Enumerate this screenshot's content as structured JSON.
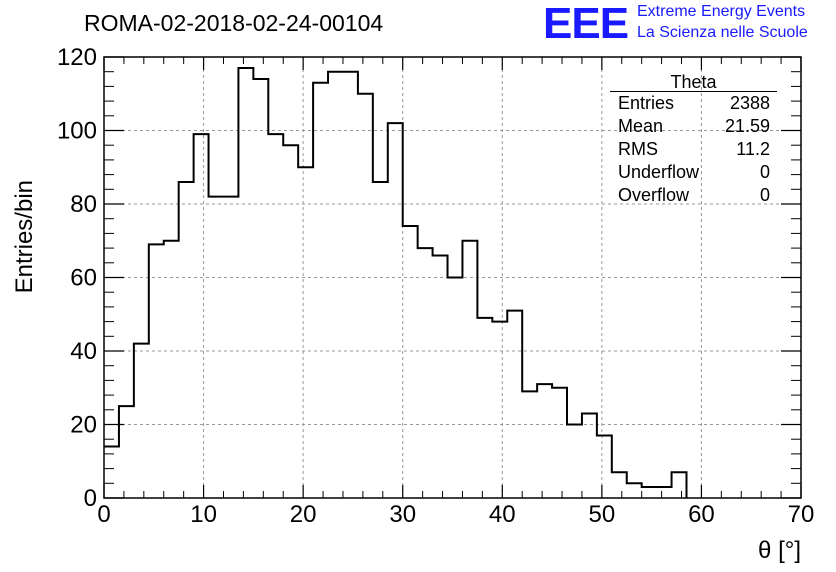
{
  "title": "ROMA-02-2018-02-24-00104",
  "logo": {
    "text": "EEE",
    "line1": "Extreme Energy Events",
    "line2": "La Scienza nelle Scuole",
    "color": "#1a1aff"
  },
  "stats": {
    "name": "Theta",
    "rows": [
      {
        "label": "Entries",
        "value": "2388"
      },
      {
        "label": "Mean",
        "value": "21.59"
      },
      {
        "label": "RMS",
        "value": "11.2"
      },
      {
        "label": "Underflow",
        "value": "0"
      },
      {
        "label": "Overflow",
        "value": "0"
      }
    ]
  },
  "chart_data": {
    "type": "histogram",
    "title": "ROMA-02-2018-02-24-00104",
    "xlabel": "θ [°]",
    "ylabel": "Entries/bin",
    "xlim": [
      0,
      70
    ],
    "ylim": [
      0,
      120
    ],
    "grid": true,
    "bin_width": 1.5,
    "bin_start": 0,
    "values": [
      14,
      25,
      42,
      69,
      70,
      86,
      99,
      82,
      82,
      117,
      114,
      99,
      96,
      90,
      113,
      116,
      116,
      110,
      86,
      102,
      74,
      68,
      66,
      60,
      70,
      49,
      48,
      51,
      29,
      31,
      30,
      20,
      23,
      17,
      7,
      4,
      3,
      3,
      7
    ],
    "x_ticks": [
      0,
      10,
      20,
      30,
      40,
      50,
      60,
      70
    ],
    "y_ticks": [
      0,
      20,
      40,
      60,
      80,
      100,
      120
    ],
    "line_color": "#000000"
  }
}
